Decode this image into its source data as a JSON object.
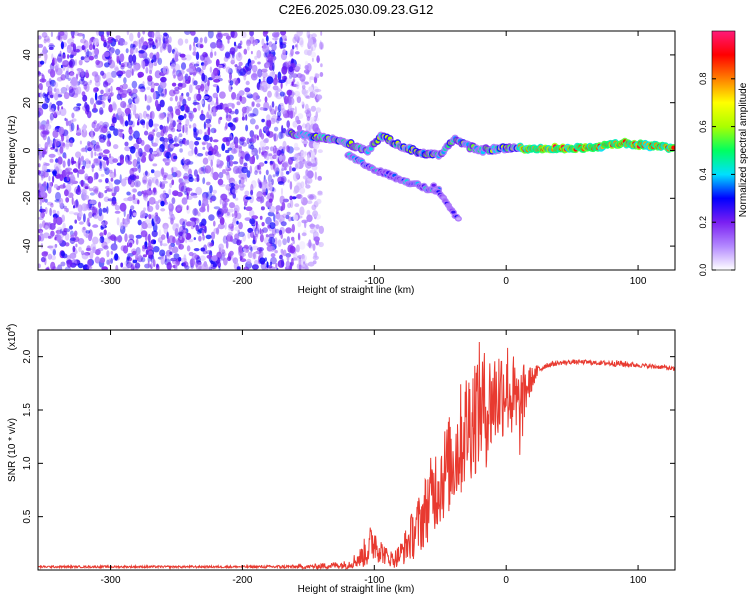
{
  "figure": {
    "title": "C2E6.2025.030.09.23.G12"
  },
  "chart_data": [
    {
      "type": "heatmap",
      "xlabel": "Height of straight line (km)",
      "ylabel": "Frequency (Hz)",
      "xlim": [
        -355,
        128
      ],
      "ylim": [
        -50,
        50
      ],
      "x_ticks": [
        -300,
        -200,
        -100,
        0,
        100
      ],
      "y_ticks": [
        -40,
        -20,
        0,
        20,
        40
      ],
      "grid": false,
      "description_of_structure": {
        "noise_region_x": [
          -355,
          -140
        ],
        "main_trace": [
          [
            -165,
            7
          ],
          [
            -150,
            6
          ],
          [
            -135,
            5
          ],
          [
            -120,
            3
          ],
          [
            -105,
            0
          ],
          [
            -95,
            6
          ],
          [
            -80,
            2
          ],
          [
            -65,
            -1
          ],
          [
            -50,
            -2
          ],
          [
            -40,
            5
          ],
          [
            -30,
            2
          ],
          [
            -20,
            0
          ],
          [
            0,
            1
          ],
          [
            20,
            1
          ],
          [
            60,
            1
          ],
          [
            90,
            3
          ],
          [
            128,
            1
          ]
        ],
        "secondary_trace": [
          [
            -120,
            -2
          ],
          [
            -100,
            -8
          ],
          [
            -80,
            -12
          ],
          [
            -60,
            -16
          ],
          [
            -50,
            -17
          ]
        ],
        "tertiary_trace": [
          [
            -55,
            -15
          ],
          [
            -45,
            -22
          ],
          [
            -35,
            -30
          ]
        ]
      },
      "colorbar": {
        "label": "Normalized spectral amplitude",
        "range": [
          0,
          1
        ],
        "ticks": [
          0.0,
          0.2,
          0.4,
          0.6,
          0.8
        ],
        "tick_labels": [
          "0.0",
          "0.2",
          "0.4",
          "0.6",
          "0.8"
        ],
        "colors": [
          "#ffffff",
          "#b388ff",
          "#7a1ff2",
          "#0000ff",
          "#00e0ff",
          "#00ff60",
          "#aaff00",
          "#ffff00",
          "#ff8000",
          "#ff0000",
          "#ff1a7a"
        ]
      }
    },
    {
      "type": "line",
      "xlabel": "Height of straight line (km)",
      "ylabel": "SNR (10 * v/v)",
      "multiplier_label": "(x10",
      "multiplier_exp": "4",
      "xlim": [
        -355,
        128
      ],
      "ylim": [
        0,
        2.25
      ],
      "x_ticks": [
        -300,
        -200,
        -100,
        0,
        100
      ],
      "y_ticks": [
        0.5,
        1.0,
        1.5,
        2.0
      ],
      "y_tick_labels": [
        "0.5",
        "1.0",
        "1.5",
        "2.0"
      ],
      "grid": false,
      "color": "#e83a30",
      "series": [
        {
          "x": [
            -355,
            -300,
            -250,
            -200,
            -150,
            -120,
            -110,
            -105,
            -100,
            -95,
            -90,
            -85,
            -80,
            -75,
            -70,
            -65,
            -60,
            -55,
            -50,
            -45,
            -40,
            -35,
            -30,
            -25,
            -20,
            -15,
            -10,
            -5,
            0,
            5,
            10,
            15,
            20,
            25,
            30,
            40,
            50,
            60,
            70,
            80,
            90,
            100,
            110,
            120,
            128
          ],
          "y": [
            0.03,
            0.03,
            0.03,
            0.03,
            0.03,
            0.05,
            0.12,
            0.2,
            0.28,
            0.18,
            0.12,
            0.1,
            0.15,
            0.25,
            0.35,
            0.45,
            0.6,
            0.75,
            0.85,
            0.95,
            1.05,
            1.2,
            1.35,
            1.45,
            1.55,
            1.5,
            1.6,
            1.65,
            1.75,
            1.6,
            1.45,
            1.7,
            1.8,
            1.88,
            1.92,
            1.94,
            1.95,
            1.95,
            1.94,
            1.94,
            1.93,
            1.92,
            1.91,
            1.9,
            1.88
          ],
          "amplitude": [
            0.01,
            0.01,
            0.01,
            0.01,
            0.02,
            0.04,
            0.1,
            0.18,
            0.2,
            0.12,
            0.08,
            0.08,
            0.12,
            0.18,
            0.25,
            0.3,
            0.35,
            0.4,
            0.45,
            0.45,
            0.5,
            0.55,
            0.55,
            0.6,
            0.6,
            0.55,
            0.5,
            0.5,
            0.45,
            0.45,
            0.45,
            0.25,
            0.1,
            0.05,
            0.03,
            0.02,
            0.02,
            0.02,
            0.02,
            0.03,
            0.03,
            0.02,
            0.02,
            0.02,
            0.02
          ]
        }
      ]
    }
  ]
}
